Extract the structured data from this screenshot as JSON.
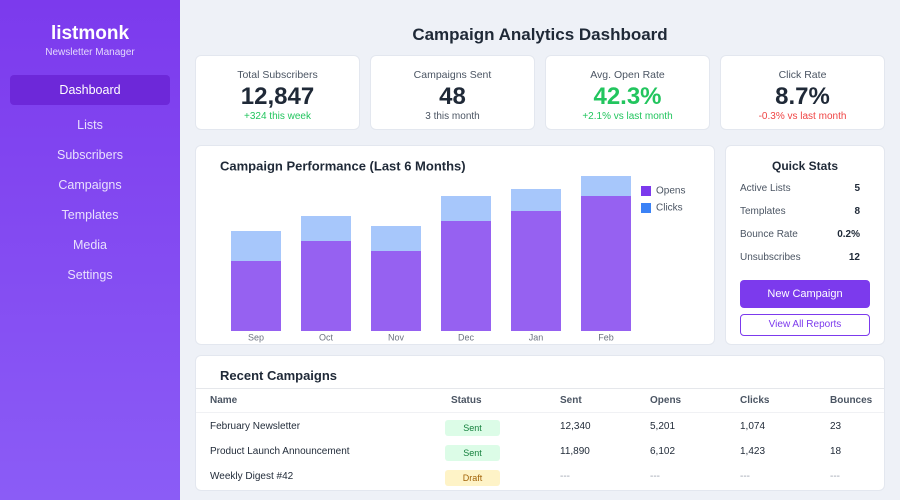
{
  "sidebar": {
    "brand": "listmonk",
    "tagline": "Newsletter Manager",
    "nav": [
      "Dashboard",
      "Lists",
      "Subscribers",
      "Campaigns",
      "Templates",
      "Media",
      "Settings"
    ],
    "active": 0
  },
  "header": {
    "title": "Campaign Analytics Dashboard"
  },
  "kpis": [
    {
      "label": "Total Subscribers",
      "value": "12,847",
      "delta": "+324 this week",
      "color": "#1f2937",
      "delta_color": "#22c55e"
    },
    {
      "label": "Campaigns Sent",
      "value": "48",
      "delta": "3 this month",
      "color": "#1f2937",
      "delta_color": "#4b5563"
    },
    {
      "label": "Avg. Open Rate",
      "value": "42.3%",
      "delta": "+2.1% vs last month",
      "color": "#22c55e",
      "delta_color": "#22c55e"
    },
    {
      "label": "Click Rate",
      "value": "8.7%",
      "delta": "-0.3% vs last month",
      "color": "#1f2937",
      "delta_color": "#ef4444"
    }
  ],
  "chart_data": {
    "type": "bar",
    "stacked": true,
    "title": "Campaign Performance (Last 6 Months)",
    "categories": [
      "Sep",
      "Oct",
      "Nov",
      "Dec",
      "Jan",
      "Feb"
    ],
    "series": [
      {
        "name": "Opens",
        "color": "#7c3aed",
        "values": [
          70,
          90,
          80,
          110,
          120,
          135
        ]
      },
      {
        "name": "Clicks",
        "color": "#3b82f6",
        "values": [
          30,
          25,
          25,
          25,
          22,
          20
        ]
      }
    ],
    "legend": "right"
  },
  "quick_stats": {
    "title": "Quick Stats",
    "rows": [
      [
        "Active Lists",
        "5"
      ],
      [
        "Templates",
        "8"
      ],
      [
        "Bounce Rate",
        "0.2%"
      ],
      [
        "Unsubscribes",
        "12"
      ]
    ],
    "buttons": [
      "New Campaign",
      "View All Reports"
    ]
  },
  "recent": {
    "title": "Recent Campaigns",
    "columns": [
      "Name",
      "Status",
      "Sent",
      "Opens",
      "Clicks",
      "Bounces"
    ],
    "rows": [
      [
        "February Newsletter",
        "Sent",
        "12,340",
        "5,201",
        "1,074",
        "23"
      ],
      [
        "Product Launch Announcement",
        "Sent",
        "11,890",
        "6,102",
        "1,423",
        "18"
      ],
      [
        "Weekly Digest #42",
        "Draft",
        "---",
        "---",
        "---",
        "---"
      ]
    ],
    "badge_colors": [
      [
        "#dcfce7",
        "#15803d"
      ],
      [
        "#dcfce7",
        "#15803d"
      ],
      [
        "#fef3c7",
        "#a16207"
      ]
    ]
  }
}
